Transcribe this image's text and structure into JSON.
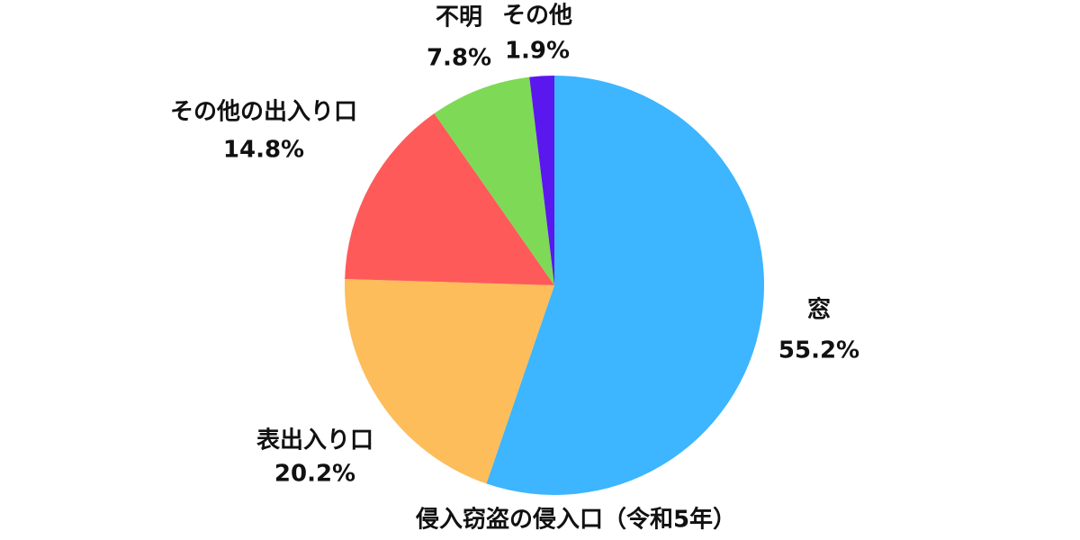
{
  "chart_data": {
    "type": "pie",
    "title": "侵入窃盗の侵入口（令和5年）",
    "categories": [
      "窓",
      "表出入り口",
      "その他の出入り口",
      "不明",
      "その他"
    ],
    "values": [
      55.2,
      20.2,
      14.8,
      7.8,
      1.9
    ],
    "value_labels": [
      "55.2%",
      "20.2%",
      "14.8%",
      "7.8%",
      "1.9%"
    ],
    "colors": [
      "#3db5ff",
      "#fdbd5a",
      "#ff5a5a",
      "#7ed957",
      "#5a17ee"
    ]
  }
}
